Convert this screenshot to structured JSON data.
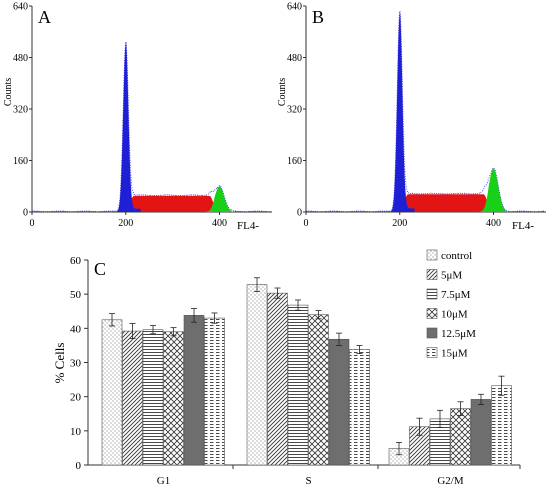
{
  "chart_data": [
    {
      "type": "area",
      "panel_label": "A",
      "ylabel": "Counts",
      "xlabel": "FL4-",
      "x_ticks": [
        0,
        200,
        400
      ],
      "y_ticks": [
        0,
        160,
        320,
        480,
        640
      ],
      "xlim": [
        0,
        512
      ],
      "ylim": [
        0,
        640
      ],
      "g1_peak": {
        "x": 200,
        "counts": 520
      },
      "g2_peak": {
        "x": 400,
        "counts": 80
      },
      "s_phase_level": 50,
      "colors": {
        "G1": "#1f1fd6",
        "S": "#e31414",
        "G2M": "#19d019",
        "envelope": "#555555"
      }
    },
    {
      "type": "area",
      "panel_label": "B",
      "ylabel": "Counts",
      "xlabel": "FL4-",
      "x_ticks": [
        0,
        200,
        400
      ],
      "y_ticks": [
        0,
        160,
        320,
        480,
        640
      ],
      "xlim": [
        0,
        512
      ],
      "ylim": [
        0,
        640
      ],
      "g1_peak": {
        "x": 200,
        "counts": 615
      },
      "g2_peak": {
        "x": 400,
        "counts": 135
      },
      "s_phase_level": 55,
      "colors": {
        "G1": "#1f1fd6",
        "S": "#e31414",
        "G2M": "#19d019",
        "envelope": "#555555"
      }
    },
    {
      "type": "bar",
      "panel_label": "C",
      "ylabel": "% Cells",
      "xlabel": "",
      "categories": [
        "G1",
        "S",
        "G2/M"
      ],
      "ylim": [
        0,
        60
      ],
      "y_ticks": [
        0,
        10,
        20,
        30,
        40,
        50,
        60
      ],
      "legend_position": "top-right",
      "series": [
        {
          "name": "control",
          "values": [
            42.5,
            52.8,
            4.8
          ],
          "errors": [
            1.8,
            2.0,
            1.8
          ],
          "pattern": "dots"
        },
        {
          "name": "5μM",
          "values": [
            39.2,
            50.3,
            11.2
          ],
          "errors": [
            2.2,
            1.5,
            2.5
          ],
          "pattern": "diag-right"
        },
        {
          "name": "7.5μM",
          "values": [
            39.6,
            46.8,
            13.5
          ],
          "errors": [
            1.2,
            1.5,
            2.5
          ],
          "pattern": "horizontal"
        },
        {
          "name": "10μM",
          "values": [
            39.0,
            44.0,
            16.5
          ],
          "errors": [
            1.2,
            1.2,
            2.0
          ],
          "pattern": "crosshatch"
        },
        {
          "name": "12.5μM",
          "values": [
            43.8,
            36.8,
            19.2
          ],
          "errors": [
            2.0,
            1.8,
            1.5
          ],
          "pattern": "solid-gray"
        },
        {
          "name": "15μM",
          "values": [
            43.0,
            33.8,
            23.2
          ],
          "errors": [
            1.5,
            1.2,
            2.8
          ],
          "pattern": "dashes"
        }
      ]
    }
  ]
}
